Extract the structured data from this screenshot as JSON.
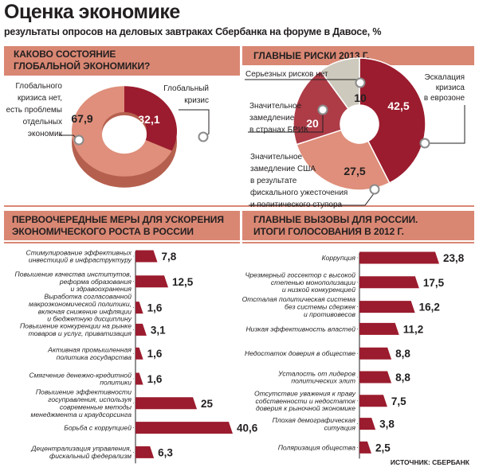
{
  "header": {
    "title": "Оценка экономике",
    "subtitle": "результаты опросов на деловых завтраках Сбербанка на форуме в Давосе, %"
  },
  "colors": {
    "band": "#d98773",
    "dark_red": "#9b1c2e",
    "light_salmon": "#df8f7b",
    "gray": "#cdc9bd",
    "text": "#231f20"
  },
  "source": "ИСТОЧНИК: СБЕРБАНК",
  "chart_data": [
    {
      "type": "pie",
      "title": "КАКОВО СОСТОЯНИЕ ГЛОБАЛЬНОЙ ЭКОНОМИКИ?",
      "title_lines": [
        "КАКОВО СОСТОЯНИЕ",
        "ГЛОБАЛЬНОЙ ЭКОНОМИКИ?"
      ],
      "slices": [
        {
          "label_lines": [
            "Глобальный",
            "кризис"
          ],
          "value": 32.1,
          "display": "32,1",
          "color": "#9b1c2e"
        },
        {
          "label_lines": [
            "Глобального",
            "кризиса нет,",
            "есть проблемы",
            "отдельных",
            "экономик"
          ],
          "value": 67.9,
          "display": "67,9",
          "color": "#df8f7b"
        }
      ]
    },
    {
      "type": "pie",
      "title": "ГЛАВНЫЕ РИСКИ 2013 Г.",
      "title_lines": [
        "ГЛАВНЫЕ РИСКИ 2013 Г."
      ],
      "slices": [
        {
          "label_lines": [
            "Эскалация",
            "кризиса",
            "в еврозоне"
          ],
          "value": 42.5,
          "display": "42,5",
          "color": "#9b1c2e"
        },
        {
          "label_lines": [
            "Значительное",
            "замедление США",
            "в результате",
            "фискального ужесточения",
            "и политического ступора"
          ],
          "value": 27.5,
          "display": "27,5",
          "color": "#df8f7b"
        },
        {
          "label_lines": [
            "Значительное",
            "замедление",
            "в странах БРИК"
          ],
          "value": 20,
          "display": "20",
          "color": "#ad3c47"
        },
        {
          "label_lines": [
            "Серьезных рисков нет"
          ],
          "value": 10,
          "display": "10",
          "color": "#cdc9bd"
        }
      ]
    },
    {
      "type": "bar",
      "orientation": "horizontal",
      "title": "ПЕРВООЧЕРЕДНЫЕ МЕРЫ ДЛЯ УСКОРЕНИЯ ЭКОНОМИЧЕСКОГО РОСТА В РОССИИ",
      "title_lines": [
        "ПЕРВООЧЕРЕДНЫЕ МЕРЫ ДЛЯ УСКОРЕНИЯ",
        "ЭКОНОМИЧЕСКОГО РОСТА В РОССИИ"
      ],
      "categories": [
        [
          "Стимулирование эффективных",
          "инвестиций в инфраструктуру"
        ],
        [
          "Повышение качества институтов,",
          "реформа образования",
          "и здравоохранения"
        ],
        [
          "Выработка согласованной",
          "макроэкономической политики,",
          "включая снижение инфляции",
          "и бюджетную дисциплину"
        ],
        [
          "Повышение конкуренции на рынке",
          "товаров и услуг, приватизация"
        ],
        [
          "Активная промышленная",
          "политика государства"
        ],
        [
          "Смягчение денежно-кредитной",
          "политики"
        ],
        [
          "Повышение эффективности",
          "госуправления, используя",
          "современные методы",
          "менеджмента и краудсорсинга"
        ],
        [
          "Борьба с коррупцией"
        ],
        [
          "Децентрализация управления,",
          "фискальный федерализм"
        ]
      ],
      "values": [
        7.8,
        12.5,
        1.6,
        3.1,
        1.6,
        1.6,
        25,
        40.6,
        6.3
      ],
      "display": [
        "7,8",
        "12,5",
        "1,6",
        "3,1",
        "1,6",
        "1,6",
        "25",
        "40,6",
        "6,3"
      ]
    },
    {
      "type": "bar",
      "orientation": "horizontal",
      "title": "ГЛАВНЫЕ ВЫЗОВЫ ДЛЯ РОССИИ. ИТОГИ ГОЛОСОВАНИЯ В 2012 Г.",
      "title_lines": [
        "ГЛАВНЫЕ ВЫЗОВЫ ДЛЯ РОССИИ.",
        "ИТОГИ ГОЛОСОВАНИЯ В 2012 Г."
      ],
      "categories": [
        [
          "Коррупция"
        ],
        [
          "Чрезмерный госсектор с высокой",
          "степенью монополизации",
          "и низкой конкуренцией"
        ],
        [
          "Отсталая политическая система",
          "без системы сдержек",
          "и противовесов"
        ],
        [
          "Низкая эффективность властей"
        ],
        [
          "Недостаток доверия в обществе"
        ],
        [
          "Усталость от лидеров",
          "политических элит"
        ],
        [
          "Отсутствие уважения к праву",
          "собственности и недостаток",
          "доверия к рыночной экономике"
        ],
        [
          "Плохая демографическая",
          "ситуация"
        ],
        [
          "Поляризация общества"
        ]
      ],
      "values": [
        23.8,
        17.5,
        16.2,
        11.2,
        8.8,
        8.8,
        7.5,
        3.8,
        2.5
      ],
      "display": [
        "23,8",
        "17,5",
        "16,2",
        "11,2",
        "8,8",
        "8,8",
        "7,5",
        "3,8",
        "2,5"
      ]
    }
  ]
}
